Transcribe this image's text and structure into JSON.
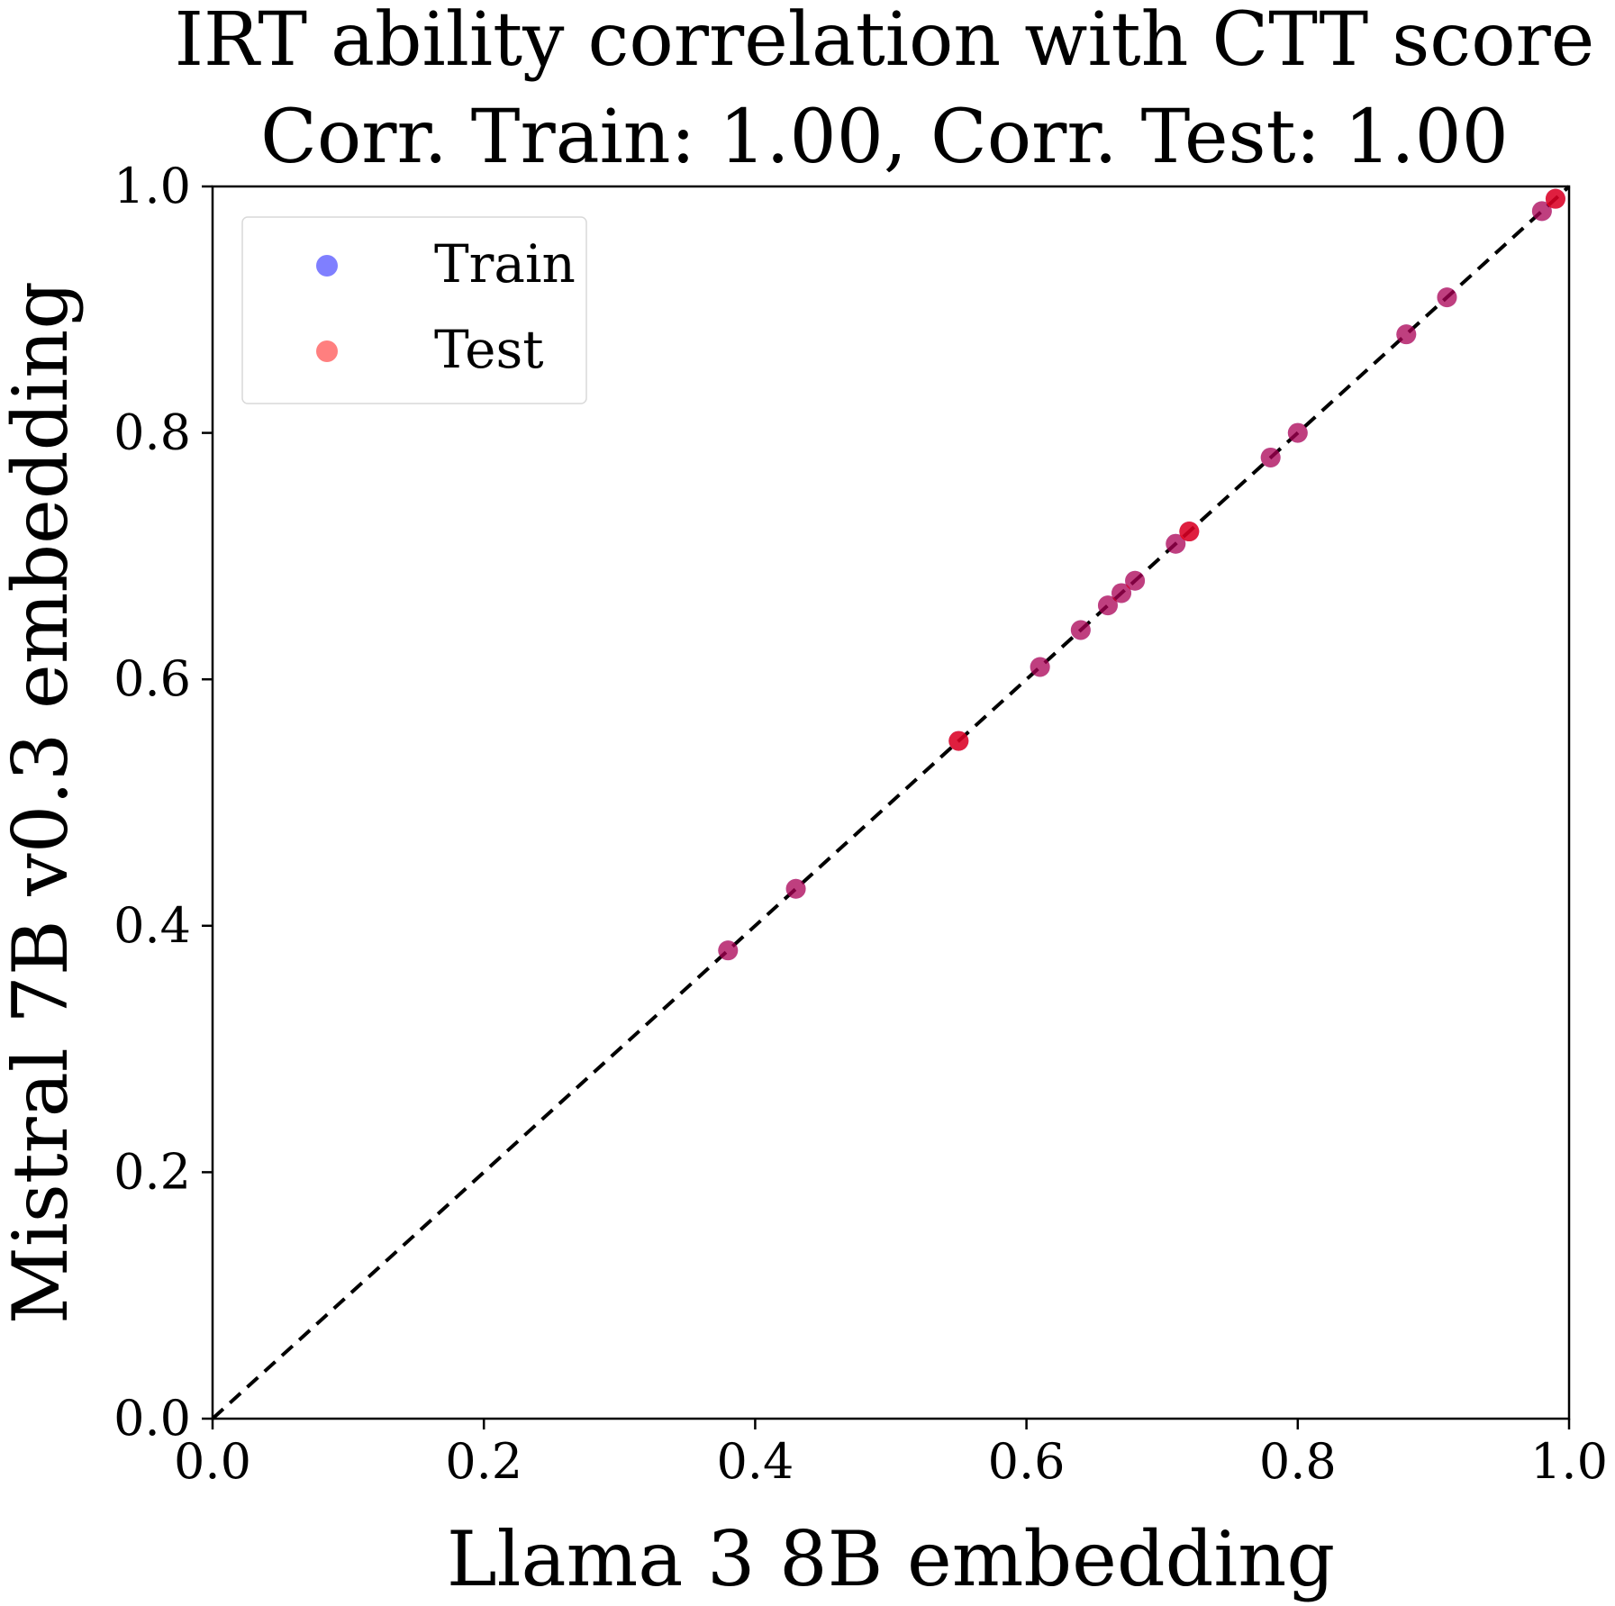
{
  "chart_data": {
    "type": "scatter",
    "title": "IRT ability correlation with CTT score",
    "subtitle": "Corr. Train: 1.00, Corr. Test: 1.00",
    "xlabel": "Llama 3 8B embedding",
    "ylabel": "Mistral 7B v0.3 embedding",
    "xlim": [
      0.0,
      1.0
    ],
    "ylim": [
      0.0,
      1.0
    ],
    "xticks": [
      "0.0",
      "0.2",
      "0.4",
      "0.6",
      "0.8",
      "1.0"
    ],
    "yticks": [
      "0.0",
      "0.2",
      "0.4",
      "0.6",
      "0.8",
      "1.0"
    ],
    "grid": false,
    "legend_position": "top-left",
    "reference_line": {
      "style": "dashed",
      "color": "#000000",
      "from": [
        0.0,
        0.0
      ],
      "to": [
        1.0,
        1.0
      ]
    },
    "series": [
      {
        "name": "Train",
        "color": "#0000ff",
        "opacity": 0.5,
        "x": [
          0.38,
          0.43,
          0.55,
          0.61,
          0.64,
          0.66,
          0.67,
          0.68,
          0.71,
          0.72,
          0.78,
          0.8,
          0.88,
          0.91,
          0.98,
          0.99
        ],
        "y": [
          0.38,
          0.43,
          0.55,
          0.61,
          0.64,
          0.66,
          0.67,
          0.68,
          0.71,
          0.72,
          0.78,
          0.8,
          0.88,
          0.91,
          0.98,
          0.99
        ]
      },
      {
        "name": "Test",
        "color": "#ff0000",
        "opacity": 0.5,
        "x": [
          0.38,
          0.43,
          0.55,
          0.55,
          0.61,
          0.64,
          0.66,
          0.67,
          0.68,
          0.71,
          0.72,
          0.72,
          0.78,
          0.8,
          0.88,
          0.91,
          0.98,
          0.99,
          0.99
        ],
        "y": [
          0.38,
          0.43,
          0.55,
          0.55,
          0.61,
          0.64,
          0.66,
          0.67,
          0.68,
          0.71,
          0.72,
          0.72,
          0.78,
          0.8,
          0.88,
          0.91,
          0.98,
          0.99,
          0.99
        ]
      }
    ]
  }
}
